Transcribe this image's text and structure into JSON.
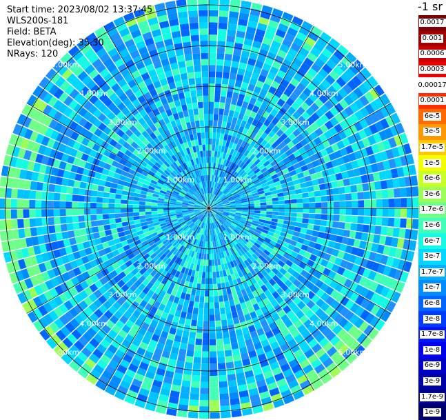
{
  "info": {
    "start_time": "Start time: 2023/08/02 13:37:45",
    "instrument": "WLS200s-181",
    "field": "Field: BETA",
    "elevation": "Elevation(deg): 35.30",
    "nrays": "NRays: 120"
  },
  "colorbar": {
    "title": "-1 sr",
    "labels": [
      "0.0017",
      "0.001",
      "0.0006",
      "0.0003",
      "0.00017",
      "0.0001",
      "6e-5",
      "3e-5",
      "1.7e-5",
      "1e-5",
      "6e-6",
      "3e-6",
      "1.7e-6",
      "1e-6",
      "6e-7",
      "3e-7",
      "1.7e-7",
      "1e-7",
      "6e-8",
      "3e-8",
      "1.7e-8",
      "1e-8",
      "6e-9",
      "3e-9",
      "1.7e-9",
      "1e-9"
    ],
    "colors": [
      "#7f0000",
      "#a00000",
      "#c80000",
      "#ee0000",
      "#ffffff",
      "#ff3000",
      "#ff6a00",
      "#ff9800",
      "#ffc800",
      "#f2ff00",
      "#c8ff24",
      "#9dff56",
      "#6fff88",
      "#41ffb6",
      "#14fae4",
      "#00d8ff",
      "#00b0ff",
      "#008cff",
      "#0064ff",
      "#003cff",
      "#0014ff",
      "#0000ee",
      "#0000c8",
      "#0000a8",
      "#000088",
      "#00006a"
    ]
  },
  "chart_data": {
    "type": "heatmap",
    "projection": "polar PPI",
    "field": "BETA",
    "units": "-1 sr",
    "nrays": 120,
    "range_ring_labels": [
      "1.00km",
      "2.00km",
      "3.00km",
      "4.00km",
      "5.00km"
    ],
    "range_rings_km": [
      1,
      2,
      3,
      4,
      5
    ],
    "max_range_km": 5.1,
    "dominant_colors": [
      "#00b0ff",
      "#0064ff",
      "#14fae4",
      "#6fff88"
    ],
    "notes": "Radial plot of backscatter; values mostly 1e-7 to 1e-6 with higher values along western and southeastern edges."
  }
}
